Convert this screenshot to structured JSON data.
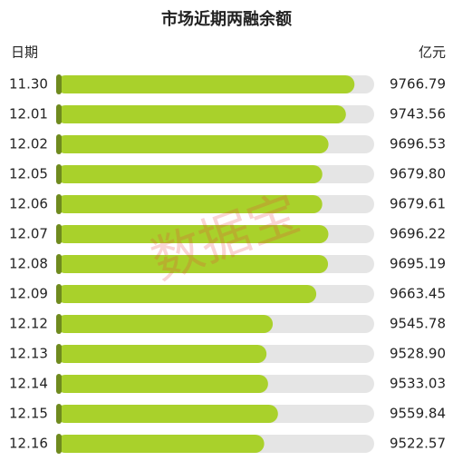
{
  "chart_data": {
    "type": "bar",
    "orientation": "horizontal",
    "title": "市场近期两融余额",
    "category_label": "日期",
    "unit_label": "亿元",
    "watermark": "数据宝",
    "categories": [
      "11.30",
      "12.01",
      "12.02",
      "12.05",
      "12.06",
      "12.07",
      "12.08",
      "12.09",
      "12.12",
      "12.13",
      "12.14",
      "12.15",
      "12.16"
    ],
    "values": [
      9766.79,
      9743.56,
      9696.53,
      9679.8,
      9679.61,
      9696.22,
      9695.19,
      9663.45,
      9545.78,
      9528.9,
      9533.03,
      9559.84,
      9522.57
    ],
    "value_labels": [
      "9766.79",
      "9743.56",
      "9696.53",
      "9679.80",
      "9679.61",
      "9696.22",
      "9695.19",
      "9663.45",
      "9545.78",
      "9528.90",
      "9533.03",
      "9559.84",
      "9522.57"
    ],
    "color": "#a9d12b",
    "track_color": "#e5e5e5",
    "cap_color": "#6f8a1e",
    "xlim": [
      8960,
      9820
    ]
  }
}
